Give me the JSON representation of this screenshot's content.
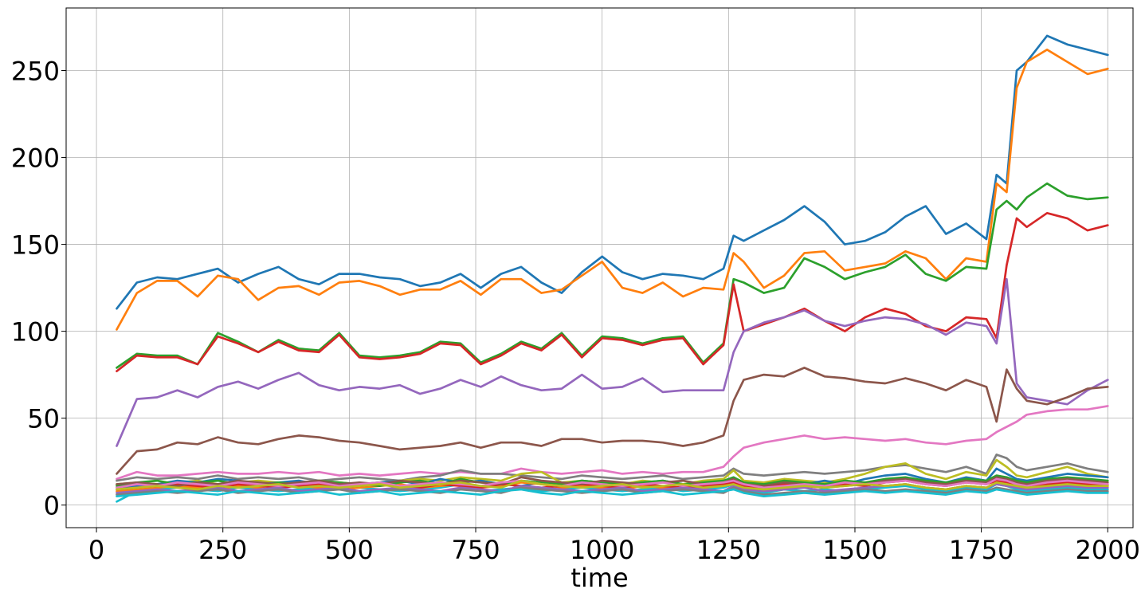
{
  "chart_data": {
    "type": "line",
    "title": "",
    "xlabel": "time",
    "ylabel": "",
    "xlim": [
      -60,
      2050
    ],
    "ylim": [
      -13,
      286
    ],
    "grid": true,
    "legend": "none",
    "x_ticks": [
      0,
      250,
      500,
      750,
      1000,
      1250,
      1500,
      1750,
      2000
    ],
    "x_tick_labels": [
      "0",
      "250",
      "500",
      "750",
      "1000",
      "1250",
      "1500",
      "1750",
      "2000"
    ],
    "y_ticks": [
      0,
      50,
      100,
      150,
      200,
      250
    ],
    "y_tick_labels": [
      "0",
      "50",
      "100",
      "150",
      "200",
      "250"
    ],
    "x": [
      40,
      80,
      120,
      160,
      200,
      240,
      280,
      320,
      360,
      400,
      440,
      480,
      520,
      560,
      600,
      640,
      680,
      720,
      760,
      800,
      840,
      880,
      920,
      960,
      1000,
      1040,
      1080,
      1120,
      1160,
      1200,
      1240,
      1260,
      1280,
      1320,
      1360,
      1400,
      1440,
      1480,
      1520,
      1560,
      1600,
      1640,
      1680,
      1720,
      1760,
      1780,
      1800,
      1820,
      1840,
      1880,
      1920,
      1960,
      2000
    ],
    "series": [
      {
        "color": "#1f77b4",
        "values": [
          113,
          128,
          131,
          130,
          133,
          136,
          128,
          133,
          137,
          130,
          127,
          133,
          133,
          131,
          130,
          126,
          128,
          133,
          125,
          133,
          137,
          128,
          122,
          134,
          143,
          134,
          130,
          133,
          132,
          130,
          136,
          155,
          152,
          158,
          164,
          172,
          163,
          150,
          152,
          157,
          166,
          172,
          156,
          162,
          153,
          190,
          185,
          250,
          255,
          270,
          265,
          262,
          259
        ]
      },
      {
        "color": "#ff7f0e",
        "values": [
          101,
          122,
          129,
          129,
          120,
          132,
          130,
          118,
          125,
          126,
          121,
          128,
          129,
          126,
          121,
          124,
          124,
          129,
          121,
          130,
          130,
          122,
          124,
          132,
          140,
          125,
          122,
          128,
          120,
          125,
          124,
          145,
          140,
          125,
          132,
          145,
          146,
          135,
          137,
          139,
          146,
          142,
          130,
          142,
          140,
          185,
          180,
          240,
          255,
          262,
          255,
          248,
          251
        ]
      },
      {
        "color": "#2ca02c",
        "values": [
          79,
          87,
          86,
          86,
          81,
          99,
          94,
          88,
          95,
          90,
          89,
          99,
          86,
          85,
          86,
          88,
          94,
          93,
          82,
          87,
          94,
          90,
          99,
          86,
          97,
          96,
          93,
          96,
          97,
          82,
          93,
          130,
          128,
          122,
          125,
          142,
          137,
          130,
          134,
          137,
          144,
          133,
          129,
          137,
          136,
          170,
          175,
          170,
          177,
          185,
          178,
          176,
          177
        ]
      },
      {
        "color": "#d62728",
        "values": [
          77,
          86,
          85,
          85,
          81,
          97,
          93,
          88,
          94,
          89,
          88,
          98,
          85,
          84,
          85,
          87,
          93,
          92,
          81,
          86,
          93,
          89,
          98,
          85,
          96,
          95,
          92,
          95,
          96,
          81,
          92,
          127,
          100,
          104,
          108,
          113,
          106,
          100,
          108,
          113,
          110,
          103,
          100,
          108,
          107,
          96,
          138,
          165,
          160,
          168,
          165,
          158,
          161
        ]
      },
      {
        "color": "#9467bd",
        "values": [
          34,
          61,
          62,
          66,
          62,
          68,
          71,
          67,
          72,
          76,
          69,
          66,
          68,
          67,
          69,
          64,
          67,
          72,
          68,
          74,
          69,
          66,
          67,
          75,
          67,
          68,
          73,
          65,
          66,
          66,
          66,
          88,
          100,
          105,
          108,
          112,
          106,
          103,
          106,
          108,
          107,
          104,
          98,
          105,
          103,
          93,
          130,
          70,
          62,
          60,
          58,
          66,
          72
        ]
      },
      {
        "color": "#8c564b",
        "values": [
          18,
          31,
          32,
          36,
          35,
          39,
          36,
          35,
          38,
          40,
          39,
          37,
          36,
          34,
          32,
          33,
          34,
          36,
          33,
          36,
          36,
          34,
          38,
          38,
          36,
          37,
          37,
          36,
          34,
          36,
          40,
          60,
          72,
          75,
          74,
          79,
          74,
          73,
          71,
          70,
          73,
          70,
          66,
          72,
          68,
          48,
          78,
          67,
          60,
          58,
          62,
          67,
          68
        ]
      },
      {
        "color": "#e377c2",
        "values": [
          15,
          19,
          17,
          17,
          18,
          19,
          18,
          18,
          19,
          18,
          19,
          17,
          18,
          17,
          18,
          19,
          18,
          19,
          18,
          18,
          21,
          19,
          18,
          19,
          20,
          18,
          19,
          18,
          19,
          19,
          22,
          28,
          33,
          36,
          38,
          40,
          38,
          39,
          38,
          37,
          38,
          36,
          35,
          37,
          38,
          42,
          45,
          48,
          52,
          54,
          55,
          55,
          57
        ]
      },
      {
        "color": "#7f7f7f",
        "values": [
          14,
          16,
          15,
          16,
          15,
          17,
          15,
          16,
          15,
          16,
          14,
          15,
          16,
          15,
          14,
          16,
          17,
          20,
          18,
          18,
          17,
          16,
          15,
          17,
          16,
          15,
          16,
          17,
          15,
          16,
          17,
          21,
          18,
          17,
          18,
          19,
          18,
          19,
          20,
          22,
          23,
          21,
          19,
          22,
          18,
          29,
          27,
          22,
          20,
          22,
          24,
          21,
          19
        ]
      },
      {
        "color": "#bcbd22",
        "values": [
          12,
          13,
          12,
          13,
          14,
          12,
          13,
          14,
          13,
          12,
          14,
          13,
          12,
          13,
          14,
          15,
          14,
          16,
          15,
          14,
          18,
          19,
          13,
          14,
          13,
          12,
          14,
          13,
          12,
          14,
          15,
          20,
          14,
          13,
          15,
          14,
          13,
          15,
          18,
          22,
          24,
          18,
          15,
          19,
          17,
          26,
          22,
          17,
          16,
          19,
          22,
          18,
          16
        ]
      },
      {
        "color": "#17becf",
        "values": [
          2,
          8,
          9,
          10,
          9,
          8,
          10,
          9,
          8,
          9,
          10,
          9,
          10,
          9,
          8,
          9,
          10,
          12,
          8,
          9,
          10,
          8,
          9,
          10,
          9,
          8,
          9,
          10,
          8,
          9,
          10,
          12,
          8,
          7,
          9,
          8,
          9,
          8,
          9,
          10,
          11,
          9,
          8,
          10,
          9,
          12,
          11,
          9,
          8,
          9,
          10,
          9,
          9
        ]
      },
      {
        "color": "#1f77b4",
        "values": [
          10,
          11,
          12,
          14,
          13,
          15,
          14,
          12,
          13,
          14,
          12,
          11,
          12,
          13,
          14,
          12,
          15,
          13,
          14,
          12,
          11,
          13,
          12,
          14,
          13,
          12,
          13,
          14,
          12,
          11,
          13,
          15,
          12,
          11,
          13,
          12,
          14,
          12,
          15,
          17,
          18,
          15,
          13,
          16,
          14,
          21,
          18,
          15,
          14,
          16,
          18,
          17,
          16
        ]
      },
      {
        "color": "#ff7f0e",
        "values": [
          8,
          9,
          10,
          11,
          10,
          9,
          11,
          10,
          12,
          11,
          10,
          9,
          10,
          11,
          12,
          10,
          11,
          12,
          10,
          11,
          13,
          12,
          10,
          11,
          10,
          9,
          11,
          10,
          9,
          10,
          11,
          12,
          10,
          9,
          10,
          11,
          10,
          11,
          12,
          11,
          12,
          10,
          9,
          11,
          10,
          13,
          12,
          11,
          10,
          11,
          12,
          11,
          11
        ]
      },
      {
        "color": "#2ca02c",
        "values": [
          11,
          13,
          14,
          12,
          13,
          14,
          12,
          11,
          13,
          12,
          14,
          13,
          12,
          11,
          13,
          14,
          12,
          15,
          13,
          12,
          14,
          13,
          12,
          14,
          13,
          12,
          13,
          14,
          12,
          13,
          14,
          16,
          13,
          12,
          14,
          13,
          12,
          14,
          13,
          15,
          16,
          14,
          13,
          15,
          14,
          17,
          16,
          14,
          13,
          15,
          16,
          15,
          14
        ]
      },
      {
        "color": "#d62728",
        "values": [
          9,
          10,
          11,
          12,
          11,
          10,
          12,
          11,
          10,
          11,
          12,
          10,
          11,
          12,
          11,
          10,
          12,
          11,
          10,
          12,
          11,
          10,
          11,
          12,
          11,
          10,
          12,
          11,
          10,
          11,
          12,
          13,
          11,
          10,
          12,
          11,
          10,
          12,
          11,
          13,
          14,
          12,
          11,
          13,
          12,
          14,
          13,
          12,
          11,
          12,
          13,
          12,
          12
        ]
      },
      {
        "color": "#9467bd",
        "values": [
          7,
          8,
          9,
          8,
          9,
          10,
          8,
          9,
          10,
          8,
          9,
          10,
          8,
          9,
          10,
          9,
          8,
          10,
          9,
          8,
          11,
          10,
          9,
          8,
          9,
          10,
          8,
          9,
          10,
          9,
          8,
          11,
          9,
          8,
          9,
          10,
          8,
          9,
          10,
          11,
          12,
          10,
          9,
          11,
          10,
          12,
          11,
          10,
          9,
          10,
          11,
          10,
          10
        ]
      },
      {
        "color": "#8c564b",
        "values": [
          12,
          13,
          12,
          11,
          13,
          12,
          14,
          13,
          12,
          13,
          14,
          12,
          13,
          12,
          14,
          13,
          12,
          14,
          13,
          12,
          16,
          14,
          13,
          12,
          14,
          13,
          12,
          13,
          14,
          12,
          13,
          15,
          12,
          11,
          13,
          12,
          11,
          13,
          12,
          14,
          15,
          13,
          12,
          14,
          13,
          16,
          15,
          13,
          12,
          14,
          15,
          14,
          13
        ]
      },
      {
        "color": "#e377c2",
        "values": [
          10,
          12,
          11,
          13,
          12,
          11,
          13,
          12,
          11,
          12,
          13,
          11,
          12,
          13,
          11,
          12,
          13,
          12,
          11,
          13,
          14,
          12,
          11,
          13,
          12,
          11,
          12,
          13,
          11,
          12,
          13,
          14,
          12,
          10,
          11,
          12,
          11,
          13,
          12,
          13,
          14,
          12,
          11,
          13,
          12,
          15,
          14,
          12,
          11,
          13,
          14,
          13,
          12
        ]
      },
      {
        "color": "#7f7f7f",
        "values": [
          6,
          7,
          8,
          7,
          8,
          9,
          7,
          8,
          9,
          7,
          8,
          9,
          7,
          8,
          9,
          8,
          7,
          9,
          8,
          7,
          10,
          9,
          8,
          7,
          8,
          9,
          7,
          8,
          9,
          8,
          7,
          10,
          8,
          6,
          7,
          8,
          7,
          8,
          9,
          8,
          9,
          8,
          7,
          9,
          8,
          10,
          9,
          8,
          7,
          8,
          9,
          8,
          8
        ]
      },
      {
        "color": "#bcbd22",
        "values": [
          9,
          10,
          11,
          10,
          9,
          11,
          10,
          11,
          12,
          10,
          11,
          10,
          11,
          12,
          10,
          11,
          12,
          13,
          11,
          10,
          14,
          12,
          11,
          10,
          11,
          12,
          10,
          11,
          12,
          10,
          11,
          12,
          10,
          9,
          10,
          11,
          10,
          11,
          12,
          11,
          12,
          10,
          9,
          11,
          10,
          13,
          12,
          11,
          10,
          11,
          12,
          11,
          11
        ]
      },
      {
        "color": "#17becf",
        "values": [
          5,
          6,
          7,
          8,
          7,
          6,
          8,
          7,
          6,
          7,
          8,
          6,
          7,
          8,
          6,
          7,
          8,
          7,
          6,
          8,
          9,
          7,
          6,
          8,
          7,
          6,
          7,
          8,
          6,
          7,
          8,
          9,
          7,
          5,
          6,
          7,
          6,
          7,
          8,
          7,
          8,
          7,
          6,
          8,
          7,
          9,
          8,
          7,
          6,
          7,
          8,
          7,
          7
        ]
      }
    ]
  }
}
